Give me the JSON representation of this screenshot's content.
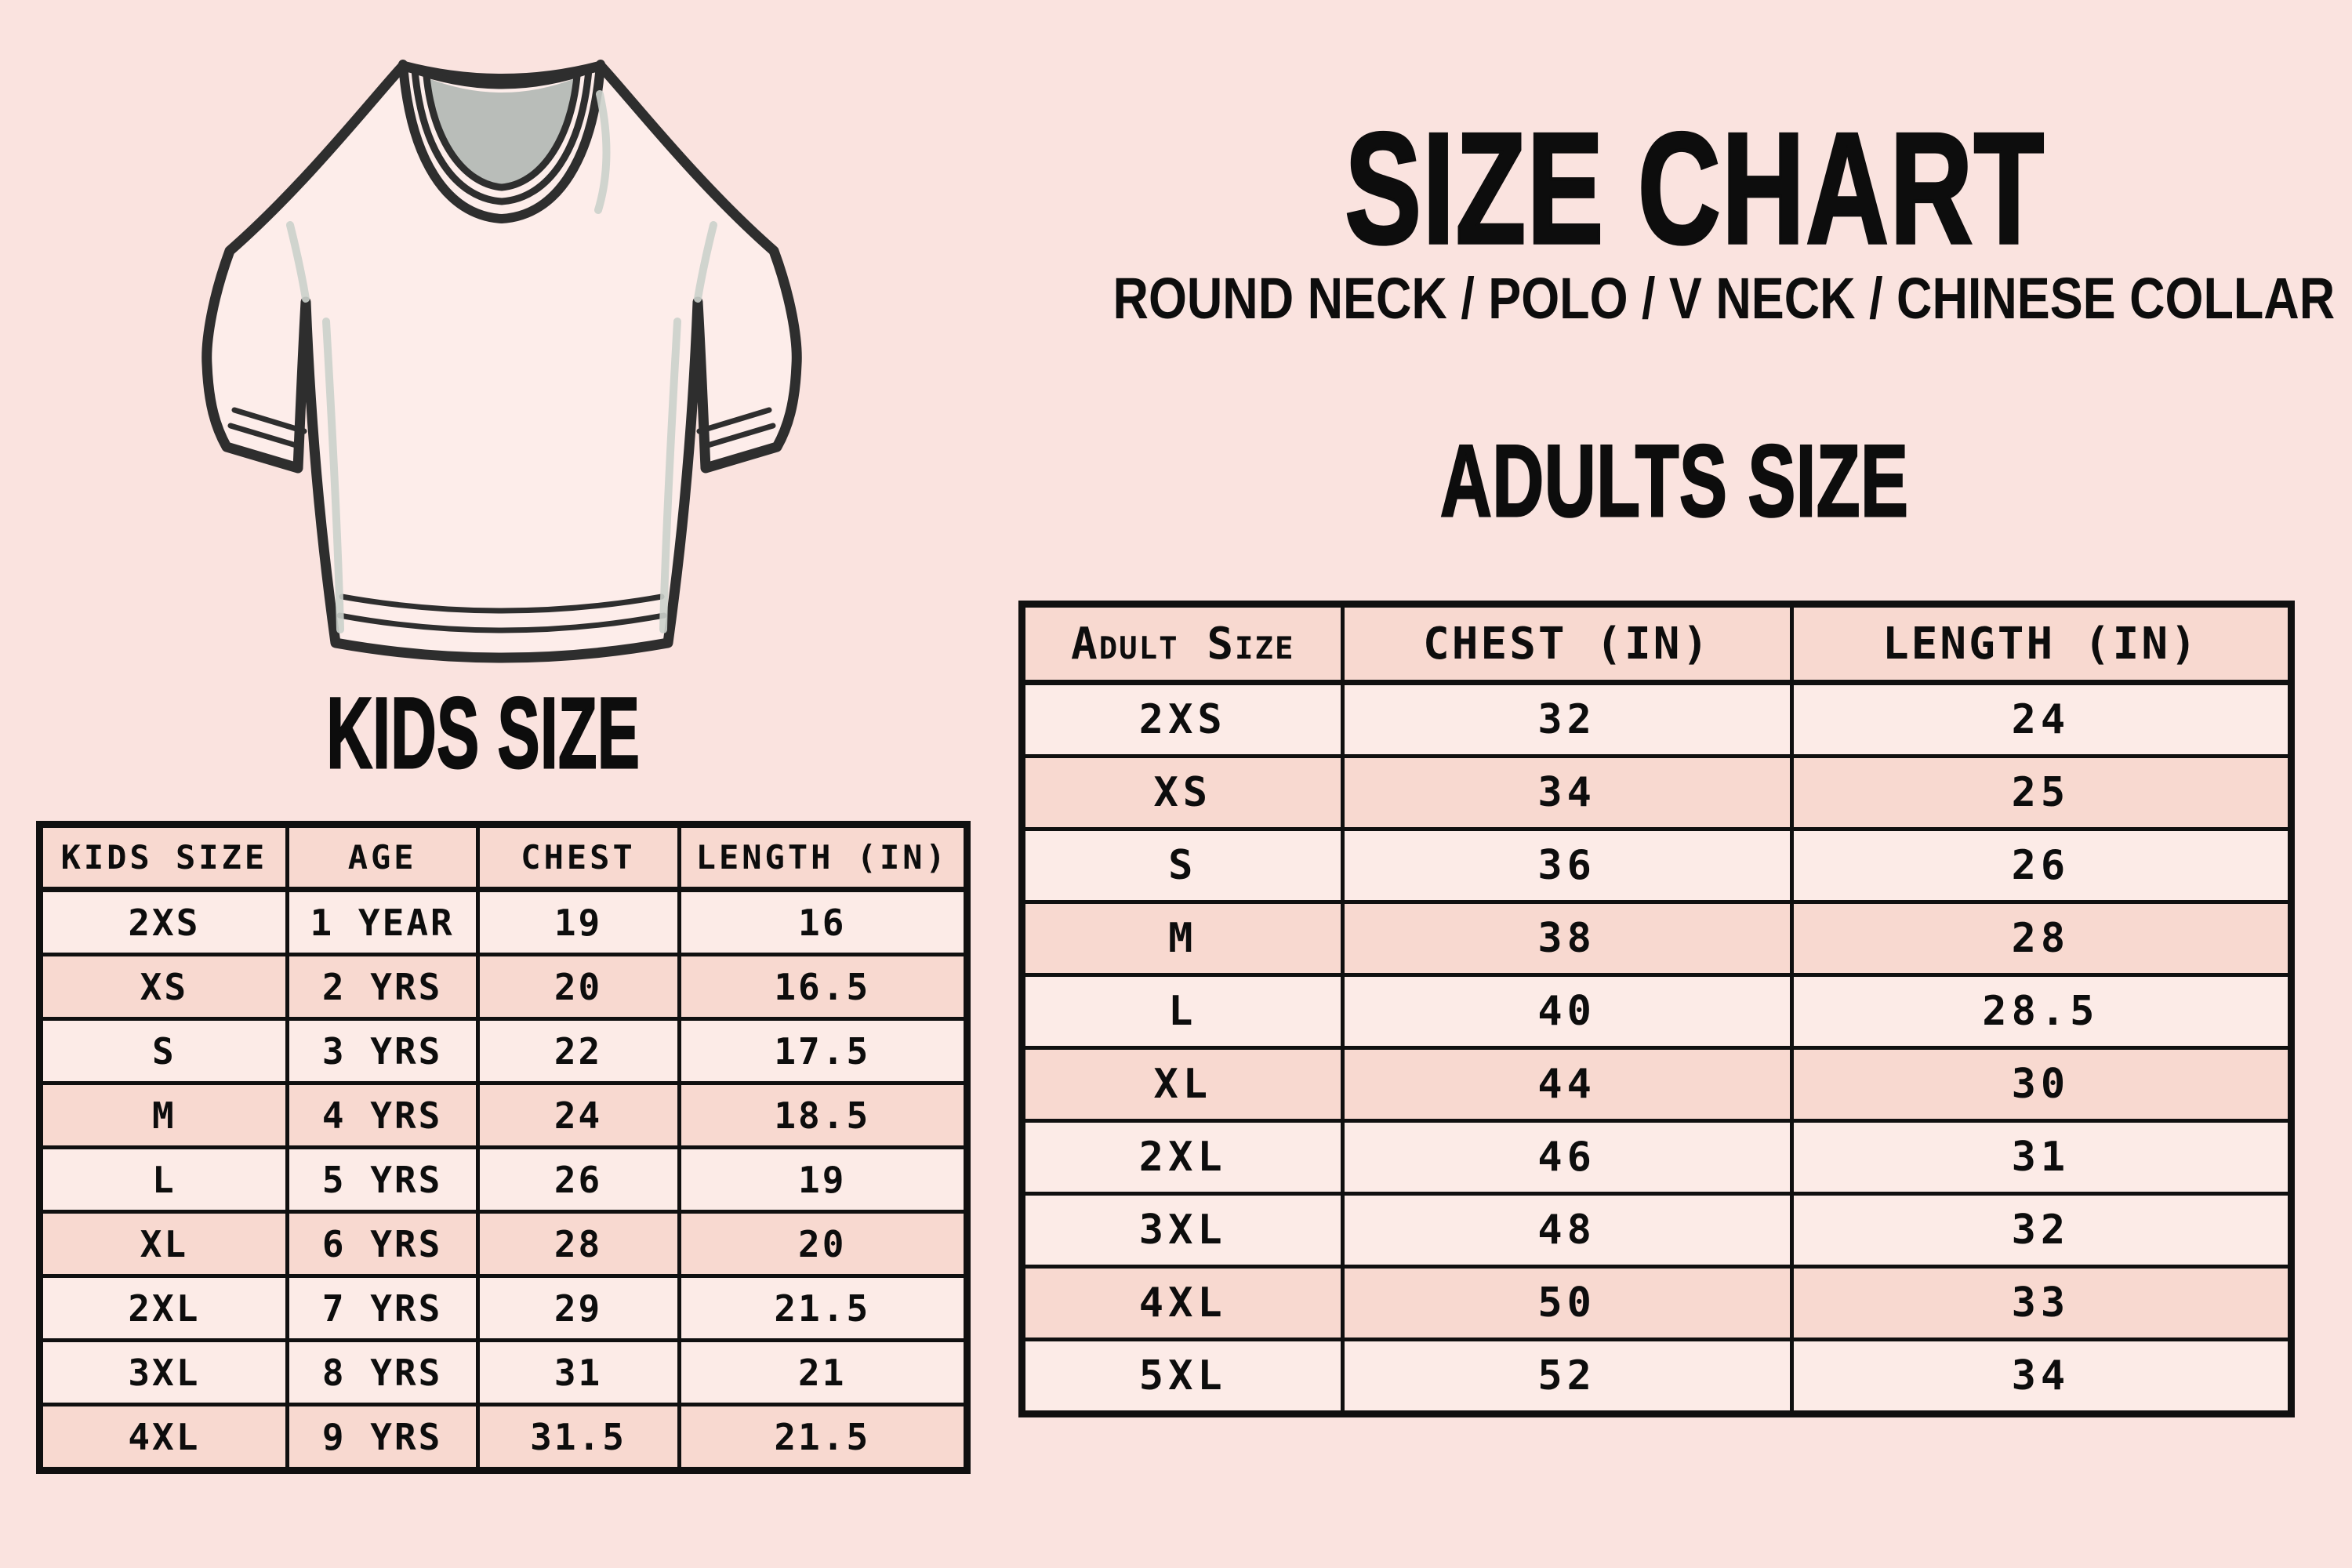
{
  "poster": {
    "title": "SIZE CHART",
    "subtitle": "ROUND NECK / POLO / V NECK / CHINESE COLLAR"
  },
  "tshirt": {
    "illustration": "blank short-sleeve round-neck t-shirt line drawing"
  },
  "colors": {
    "background": "#fae3df",
    "row_light": "#fcebe7",
    "row_dark": "#f8d9d0",
    "border": "#101010",
    "ink": "#0d0d0d",
    "shirt_fill": "#fdedea",
    "shirt_outline": "#2e2e2e",
    "neck_gray": "#b9bdb9",
    "shade_gray": "#cbd0cb"
  },
  "chart_data": [
    {
      "type": "table",
      "title": "KIDS SIZE",
      "columns": [
        "KIDS SIZE",
        "AGE",
        "CHEST",
        "LENGTH (IN)"
      ],
      "rows": [
        [
          "2XS",
          "1 YEAR",
          "19",
          "16"
        ],
        [
          "XS",
          "2 YRS",
          "20",
          "16.5"
        ],
        [
          "S",
          "3 YRS",
          "22",
          "17.5"
        ],
        [
          "M",
          "4 YRS",
          "24",
          "18.5"
        ],
        [
          "L",
          "5 YRS",
          "26",
          "19"
        ],
        [
          "XL",
          "6 YRS",
          "28",
          "20"
        ],
        [
          "2XL",
          "7 YRS",
          "29",
          "21.5"
        ],
        [
          "3XL",
          "8 YRS",
          "31",
          "21"
        ],
        [
          "4XL",
          "9 YRS",
          "31.5",
          "21.5"
        ]
      ],
      "shaded_rows": [
        false,
        true,
        false,
        true,
        false,
        true,
        false,
        false,
        true
      ]
    },
    {
      "type": "table",
      "title": "ADULTS SIZE",
      "columns": [
        "Adult Size",
        "CHEST (IN)",
        "LENGTH (IN)"
      ],
      "rows": [
        [
          "2XS",
          "32",
          "24"
        ],
        [
          "XS",
          "34",
          "25"
        ],
        [
          "S",
          "36",
          "26"
        ],
        [
          "M",
          "38",
          "28"
        ],
        [
          "L",
          "40",
          "28.5"
        ],
        [
          "XL",
          "44",
          "30"
        ],
        [
          "2XL",
          "46",
          "31"
        ],
        [
          "3XL",
          "48",
          "32"
        ],
        [
          "4XL",
          "50",
          "33"
        ],
        [
          "5XL",
          "52",
          "34"
        ]
      ],
      "shaded_rows": [
        false,
        true,
        false,
        true,
        false,
        true,
        false,
        false,
        true,
        false
      ]
    }
  ]
}
